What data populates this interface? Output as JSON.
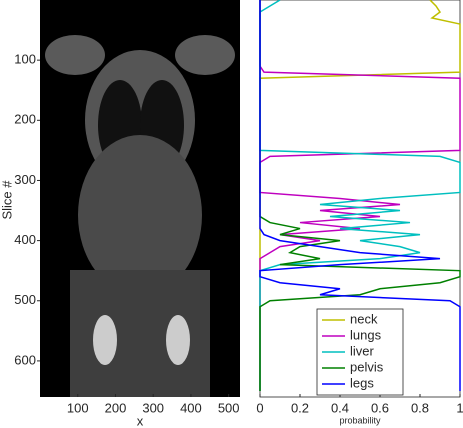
{
  "chart_data": [
    {
      "type": "image",
      "xlabel": "x",
      "ylabel": "Slice #",
      "xlim": [
        0,
        530
      ],
      "xticks": [
        100,
        200,
        300,
        400,
        500
      ],
      "ylim": [
        0,
        660
      ],
      "y_inverted": true,
      "yticks": [
        100,
        200,
        300,
        400,
        500,
        600
      ]
    },
    {
      "type": "line",
      "xlabel": "probability",
      "xlim": [
        0,
        1
      ],
      "xticks": [
        0,
        0.2,
        0.4,
        0.6,
        0.8,
        1
      ],
      "ylim": [
        0,
        660
      ],
      "y_inverted": true,
      "legend": "lower center",
      "slices": [
        0,
        10,
        20,
        30,
        40,
        50,
        60,
        70,
        80,
        90,
        100,
        110,
        120,
        130,
        140,
        150,
        160,
        170,
        180,
        190,
        200,
        210,
        220,
        230,
        240,
        250,
        260,
        270,
        280,
        290,
        300,
        310,
        320,
        330,
        340,
        350,
        360,
        370,
        380,
        390,
        400,
        410,
        420,
        430,
        440,
        450,
        460,
        470,
        480,
        490,
        500,
        510,
        520,
        530,
        540,
        550,
        560,
        570,
        580,
        590,
        600,
        610,
        620,
        630,
        640,
        650
      ],
      "series": [
        {
          "name": "neck",
          "color": "#bfbf00",
          "values": [
            0.85,
            0.88,
            0.9,
            0.86,
            1,
            1,
            1,
            1,
            1,
            1,
            1,
            1,
            1,
            0,
            0,
            0,
            0,
            0,
            0,
            0,
            0,
            0,
            0,
            0,
            0,
            0,
            0,
            0,
            0,
            0,
            0,
            0,
            0,
            0,
            0,
            0,
            0,
            0,
            0,
            0,
            0,
            0,
            0,
            0,
            0,
            0,
            0,
            0,
            0,
            0,
            0,
            0,
            0,
            0,
            0,
            0,
            0,
            0,
            0,
            0,
            0,
            0,
            0,
            0,
            0,
            0
          ]
        },
        {
          "name": "lungs",
          "color": "#bf00bf",
          "values": [
            0,
            0,
            0,
            0,
            0,
            0,
            0,
            0,
            0,
            0,
            0,
            0,
            0.02,
            1,
            1,
            1,
            1,
            1,
            1,
            1,
            1,
            1,
            1,
            1,
            1,
            1,
            0.05,
            0,
            0,
            0,
            0,
            0,
            0,
            0.4,
            0.7,
            0.3,
            0.6,
            0.2,
            0.5,
            0.1,
            0.3,
            0.1,
            0.05,
            0,
            0,
            0,
            0,
            0,
            0,
            0,
            0,
            0,
            0,
            0,
            0,
            0,
            0,
            0,
            0,
            0,
            0,
            0,
            0,
            0,
            0,
            0
          ]
        },
        {
          "name": "liver",
          "color": "#00bfbf",
          "values": [
            0.1,
            0.05,
            0,
            0,
            0,
            0,
            0,
            0,
            0,
            0,
            0,
            0,
            0,
            0,
            0,
            0,
            0,
            0,
            0,
            0,
            0,
            0,
            0,
            0,
            0,
            0,
            0.9,
            1,
            1,
            1,
            1,
            1,
            1,
            0.6,
            0.3,
            0.7,
            0.35,
            0.75,
            0.4,
            0.8,
            0.5,
            0.7,
            0.8,
            0.6,
            0.1,
            0,
            0,
            0,
            0,
            0,
            0,
            0,
            0,
            0,
            0,
            0,
            0,
            0,
            0,
            0,
            0,
            0,
            0,
            0,
            0,
            0
          ]
        },
        {
          "name": "pelvis",
          "color": "#008000",
          "values": [
            0,
            0,
            0,
            0,
            0,
            0,
            0,
            0,
            0,
            0,
            0,
            0,
            0,
            0,
            0,
            0,
            0,
            0,
            0,
            0,
            0,
            0,
            0,
            0,
            0,
            0,
            0,
            0,
            0,
            0,
            0,
            0,
            0,
            0,
            0,
            0,
            0,
            0.05,
            0.2,
            0.1,
            0.4,
            0.2,
            0.15,
            0.3,
            0.1,
            1,
            1,
            0.9,
            0.6,
            0.5,
            0.05,
            0,
            0,
            0,
            0,
            0,
            0,
            0,
            0,
            0,
            0,
            0,
            0,
            0,
            0,
            0
          ]
        },
        {
          "name": "legs",
          "color": "#0000ff",
          "values": [
            0,
            0,
            0,
            0,
            0,
            0,
            0,
            0,
            0,
            0,
            0,
            0,
            0,
            0,
            0,
            0,
            0,
            0,
            0,
            0,
            0,
            0,
            0,
            0,
            0,
            0,
            0,
            0,
            0,
            0,
            0,
            0,
            0,
            0,
            0,
            0,
            0,
            0,
            0,
            0.02,
            0.1,
            0.3,
            0.5,
            0.9,
            0.4,
            0,
            0,
            0.1,
            0.4,
            0.3,
            0.95,
            1,
            1,
            1,
            1,
            1,
            1,
            1,
            1,
            1,
            1,
            1,
            1,
            1,
            1,
            1
          ]
        }
      ]
    }
  ]
}
